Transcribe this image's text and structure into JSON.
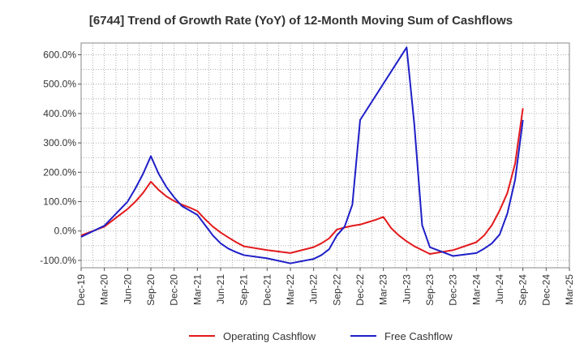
{
  "chart_data": {
    "type": "line",
    "title": "[6744]  Trend of Growth Rate (YoY) of 12-Month Moving Sum of Cashflows",
    "xlabel": "",
    "ylabel": "",
    "ylim": [
      -125,
      640
    ],
    "y_ticks": [
      -100,
      0,
      100,
      200,
      300,
      400,
      500,
      600
    ],
    "y_tick_labels": [
      "-100.0%",
      "0.0%",
      "100.0%",
      "200.0%",
      "300.0%",
      "400.0%",
      "500.0%",
      "600.0%"
    ],
    "x_ticks": [
      "Dec-19",
      "Mar-20",
      "Jun-20",
      "Sep-20",
      "Dec-20",
      "Mar-21",
      "Jun-21",
      "Sep-21",
      "Dec-21",
      "Mar-22",
      "Jun-22",
      "Sep-22",
      "Dec-22",
      "Mar-23",
      "Jun-23",
      "Sep-23",
      "Dec-23",
      "Mar-24",
      "Jun-24",
      "Sep-24",
      "Dec-24",
      "Mar-25"
    ],
    "grid": true,
    "legend_position": "bottom",
    "series": [
      {
        "name": "Operating Cashflow",
        "color": "#e31a1c",
        "x": [
          "Dec-19",
          "Mar-20",
          "Jun-20",
          "Jul-20",
          "Aug-20",
          "Sep-20",
          "Oct-20",
          "Nov-20",
          "Dec-20",
          "Jan-21",
          "Feb-21",
          "Mar-21",
          "Apr-21",
          "May-21",
          "Jun-21",
          "Jul-21",
          "Aug-21",
          "Sep-21",
          "Dec-21",
          "Mar-22",
          "Jun-22",
          "Jul-22",
          "Aug-22",
          "Sep-22",
          "Oct-22",
          "Nov-22",
          "Dec-22",
          "Jan-23",
          "Feb-23",
          "Mar-23",
          "Apr-23",
          "May-23",
          "Jun-23",
          "Jul-23",
          "Aug-23",
          "Sep-23",
          "Dec-23",
          "Mar-24",
          "Apr-24",
          "May-24",
          "Jun-24",
          "Jul-24",
          "Aug-24",
          "Sep-24",
          "Oct-24"
        ],
        "values": [
          -15,
          15,
          75,
          100,
          130,
          168,
          140,
          118,
          102,
          90,
          80,
          68,
          40,
          15,
          -5,
          -22,
          -38,
          -52,
          -65,
          -75,
          -55,
          -42,
          -25,
          5,
          12,
          18,
          22,
          30,
          38,
          48,
          10,
          -15,
          -35,
          -52,
          -65,
          -78,
          -65,
          -38,
          -15,
          20,
          70,
          130,
          230,
          418,
          null
        ]
      },
      {
        "name": "Free Cashflow",
        "color": "#1f1fc8",
        "x": [
          "Dec-19",
          "Mar-20",
          "Jun-20",
          "Jul-20",
          "Aug-20",
          "Sep-20",
          "Oct-20",
          "Nov-20",
          "Dec-20",
          "Jan-21",
          "Feb-21",
          "Mar-21",
          "Apr-21",
          "May-21",
          "Jun-21",
          "Jul-21",
          "Aug-21",
          "Sep-21",
          "Dec-21",
          "Mar-22",
          "Jun-22",
          "Jul-22",
          "Aug-22",
          "Sep-22",
          "Oct-22",
          "Nov-22",
          "Dec-22",
          "Jun-23",
          "Jul-23",
          "Aug-23",
          "Sep-23",
          "Dec-23",
          "Mar-24",
          "Apr-24",
          "May-24",
          "Jun-24",
          "Jul-24",
          "Aug-24",
          "Sep-24"
        ],
        "values": [
          -20,
          18,
          100,
          145,
          195,
          255,
          195,
          150,
          115,
          85,
          70,
          55,
          20,
          -15,
          -42,
          -60,
          -72,
          -82,
          -93,
          -110,
          -95,
          -82,
          -62,
          -15,
          15,
          90,
          378,
          625,
          360,
          20,
          -55,
          -85,
          -75,
          -60,
          -42,
          -12,
          60,
          175,
          378
        ]
      }
    ]
  }
}
